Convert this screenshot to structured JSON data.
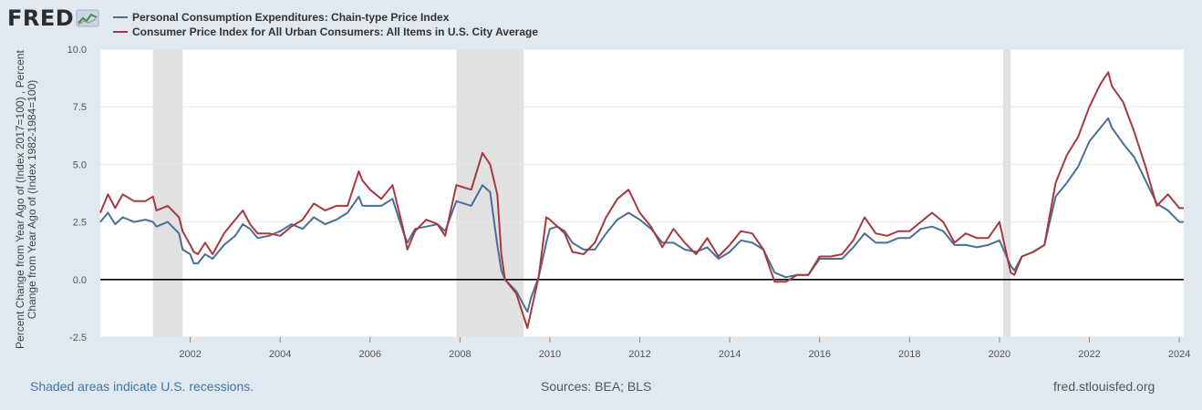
{
  "brand": {
    "name": "FRED",
    "logo_icon": "fred-chart-logo-icon"
  },
  "footer": {
    "recession_note": "Shaded areas indicate U.S. recessions.",
    "sources": "Sources: BEA; BLS",
    "site": "fred.stlouisfed.org"
  },
  "colors": {
    "pce": "#4a6f96",
    "cpi": "#a6393f",
    "recession": "#e1e1e1",
    "background": "#e1e9f0",
    "zero_line": "#000000"
  },
  "chart_data": {
    "type": "line",
    "ylabel": "Percent Change from Year Ago of (Index 2017=100) , Percent Change from Year Ago of (Index 1982-1984=100)",
    "ylim": [
      -2.5,
      10.0
    ],
    "yticks": [
      "-2.5",
      "0.0",
      "2.5",
      "5.0",
      "7.5",
      "10.0"
    ],
    "xlim": [
      2000.0,
      2024.1
    ],
    "xticks": [
      "2002",
      "2004",
      "2006",
      "2008",
      "2010",
      "2012",
      "2014",
      "2016",
      "2018",
      "2020",
      "2022",
      "2024"
    ],
    "grid": "horizontal",
    "legend_position": "top-left",
    "recessions": [
      [
        2001.17,
        2001.83
      ],
      [
        2007.92,
        2009.42
      ],
      [
        2020.08,
        2020.25
      ]
    ],
    "reference_line": 0.0,
    "series": [
      {
        "name": "Personal Consumption Expenditures: Chain-type Price Index",
        "color": "#4a6f96",
        "points": [
          [
            2000.0,
            2.5
          ],
          [
            2000.17,
            2.9
          ],
          [
            2000.33,
            2.4
          ],
          [
            2000.5,
            2.7
          ],
          [
            2000.75,
            2.5
          ],
          [
            2001.0,
            2.6
          ],
          [
            2001.17,
            2.5
          ],
          [
            2001.25,
            2.3
          ],
          [
            2001.5,
            2.5
          ],
          [
            2001.75,
            2.0
          ],
          [
            2001.83,
            1.3
          ],
          [
            2002.0,
            1.1
          ],
          [
            2002.08,
            0.7
          ],
          [
            2002.17,
            0.7
          ],
          [
            2002.33,
            1.1
          ],
          [
            2002.5,
            0.9
          ],
          [
            2002.75,
            1.5
          ],
          [
            2003.0,
            1.9
          ],
          [
            2003.17,
            2.4
          ],
          [
            2003.33,
            2.2
          ],
          [
            2003.5,
            1.8
          ],
          [
            2003.75,
            1.9
          ],
          [
            2004.0,
            2.1
          ],
          [
            2004.25,
            2.4
          ],
          [
            2004.5,
            2.2
          ],
          [
            2004.75,
            2.7
          ],
          [
            2005.0,
            2.4
          ],
          [
            2005.25,
            2.6
          ],
          [
            2005.5,
            2.9
          ],
          [
            2005.75,
            3.6
          ],
          [
            2005.83,
            3.2
          ],
          [
            2006.0,
            3.2
          ],
          [
            2006.25,
            3.2
          ],
          [
            2006.5,
            3.5
          ],
          [
            2006.75,
            2.0
          ],
          [
            2006.83,
            1.6
          ],
          [
            2007.0,
            2.2
          ],
          [
            2007.25,
            2.3
          ],
          [
            2007.5,
            2.4
          ],
          [
            2007.67,
            2.1
          ],
          [
            2007.92,
            3.4
          ],
          [
            2008.25,
            3.2
          ],
          [
            2008.5,
            4.1
          ],
          [
            2008.67,
            3.8
          ],
          [
            2008.83,
            1.5
          ],
          [
            2008.92,
            0.4
          ],
          [
            2009.0,
            0.0
          ],
          [
            2009.25,
            -0.5
          ],
          [
            2009.5,
            -1.4
          ],
          [
            2009.58,
            -0.8
          ],
          [
            2009.75,
            0.1
          ],
          [
            2009.92,
            1.6
          ],
          [
            2010.0,
            2.2
          ],
          [
            2010.17,
            2.3
          ],
          [
            2010.33,
            2.1
          ],
          [
            2010.5,
            1.6
          ],
          [
            2010.75,
            1.3
          ],
          [
            2011.0,
            1.3
          ],
          [
            2011.25,
            2.0
          ],
          [
            2011.5,
            2.6
          ],
          [
            2011.75,
            2.9
          ],
          [
            2012.0,
            2.6
          ],
          [
            2012.25,
            2.2
          ],
          [
            2012.5,
            1.6
          ],
          [
            2012.75,
            1.6
          ],
          [
            2013.0,
            1.3
          ],
          [
            2013.25,
            1.2
          ],
          [
            2013.5,
            1.4
          ],
          [
            2013.75,
            0.9
          ],
          [
            2014.0,
            1.2
          ],
          [
            2014.25,
            1.7
          ],
          [
            2014.5,
            1.6
          ],
          [
            2014.75,
            1.3
          ],
          [
            2015.0,
            0.3
          ],
          [
            2015.25,
            0.1
          ],
          [
            2015.5,
            0.2
          ],
          [
            2015.75,
            0.2
          ],
          [
            2016.0,
            0.9
          ],
          [
            2016.25,
            0.9
          ],
          [
            2016.5,
            0.9
          ],
          [
            2016.75,
            1.4
          ],
          [
            2017.0,
            2.0
          ],
          [
            2017.25,
            1.6
          ],
          [
            2017.5,
            1.6
          ],
          [
            2017.75,
            1.8
          ],
          [
            2018.0,
            1.8
          ],
          [
            2018.25,
            2.2
          ],
          [
            2018.5,
            2.3
          ],
          [
            2018.75,
            2.1
          ],
          [
            2019.0,
            1.5
          ],
          [
            2019.25,
            1.5
          ],
          [
            2019.5,
            1.4
          ],
          [
            2019.75,
            1.5
          ],
          [
            2020.0,
            1.7
          ],
          [
            2020.25,
            0.6
          ],
          [
            2020.33,
            0.4
          ],
          [
            2020.5,
            1.0
          ],
          [
            2020.75,
            1.2
          ],
          [
            2021.0,
            1.5
          ],
          [
            2021.25,
            3.6
          ],
          [
            2021.5,
            4.2
          ],
          [
            2021.75,
            4.9
          ],
          [
            2022.0,
            6.0
          ],
          [
            2022.25,
            6.6
          ],
          [
            2022.42,
            7.0
          ],
          [
            2022.5,
            6.6
          ],
          [
            2022.75,
            5.9
          ],
          [
            2023.0,
            5.3
          ],
          [
            2023.25,
            4.3
          ],
          [
            2023.5,
            3.3
          ],
          [
            2023.75,
            3.0
          ],
          [
            2024.0,
            2.5
          ],
          [
            2024.1,
            2.5
          ]
        ]
      },
      {
        "name": "Consumer Price Index for All Urban Consumers: All Items in U.S. City Average",
        "color": "#a6393f",
        "points": [
          [
            2000.0,
            2.9
          ],
          [
            2000.17,
            3.7
          ],
          [
            2000.33,
            3.1
          ],
          [
            2000.5,
            3.7
          ],
          [
            2000.75,
            3.4
          ],
          [
            2001.0,
            3.4
          ],
          [
            2001.17,
            3.6
          ],
          [
            2001.25,
            3.0
          ],
          [
            2001.5,
            3.2
          ],
          [
            2001.75,
            2.7
          ],
          [
            2001.83,
            2.1
          ],
          [
            2002.0,
            1.5
          ],
          [
            2002.08,
            1.2
          ],
          [
            2002.17,
            1.1
          ],
          [
            2002.33,
            1.6
          ],
          [
            2002.5,
            1.1
          ],
          [
            2002.75,
            2.0
          ],
          [
            2003.0,
            2.6
          ],
          [
            2003.17,
            3.0
          ],
          [
            2003.33,
            2.4
          ],
          [
            2003.5,
            2.0
          ],
          [
            2003.75,
            2.0
          ],
          [
            2004.0,
            1.9
          ],
          [
            2004.25,
            2.3
          ],
          [
            2004.5,
            2.6
          ],
          [
            2004.75,
            3.3
          ],
          [
            2005.0,
            3.0
          ],
          [
            2005.25,
            3.2
          ],
          [
            2005.5,
            3.2
          ],
          [
            2005.75,
            4.7
          ],
          [
            2005.83,
            4.3
          ],
          [
            2006.0,
            3.9
          ],
          [
            2006.25,
            3.5
          ],
          [
            2006.5,
            4.1
          ],
          [
            2006.75,
            2.1
          ],
          [
            2006.83,
            1.3
          ],
          [
            2007.0,
            2.1
          ],
          [
            2007.25,
            2.6
          ],
          [
            2007.5,
            2.4
          ],
          [
            2007.67,
            1.9
          ],
          [
            2007.92,
            4.1
          ],
          [
            2008.25,
            3.9
          ],
          [
            2008.5,
            5.5
          ],
          [
            2008.67,
            5.0
          ],
          [
            2008.83,
            3.7
          ],
          [
            2008.92,
            1.1
          ],
          [
            2009.0,
            0.0
          ],
          [
            2009.25,
            -0.6
          ],
          [
            2009.5,
            -2.1
          ],
          [
            2009.58,
            -1.4
          ],
          [
            2009.75,
            0.1
          ],
          [
            2009.92,
            2.7
          ],
          [
            2010.0,
            2.6
          ],
          [
            2010.17,
            2.3
          ],
          [
            2010.33,
            2.0
          ],
          [
            2010.5,
            1.2
          ],
          [
            2010.75,
            1.1
          ],
          [
            2011.0,
            1.6
          ],
          [
            2011.25,
            2.7
          ],
          [
            2011.5,
            3.5
          ],
          [
            2011.75,
            3.9
          ],
          [
            2012.0,
            2.9
          ],
          [
            2012.25,
            2.3
          ],
          [
            2012.5,
            1.4
          ],
          [
            2012.75,
            2.2
          ],
          [
            2013.0,
            1.6
          ],
          [
            2013.25,
            1.1
          ],
          [
            2013.5,
            1.8
          ],
          [
            2013.75,
            1.0
          ],
          [
            2014.0,
            1.5
          ],
          [
            2014.25,
            2.1
          ],
          [
            2014.5,
            2.0
          ],
          [
            2014.75,
            1.3
          ],
          [
            2015.0,
            -0.1
          ],
          [
            2015.25,
            -0.1
          ],
          [
            2015.5,
            0.2
          ],
          [
            2015.75,
            0.2
          ],
          [
            2016.0,
            1.0
          ],
          [
            2016.25,
            1.0
          ],
          [
            2016.5,
            1.1
          ],
          [
            2016.75,
            1.7
          ],
          [
            2017.0,
            2.7
          ],
          [
            2017.25,
            2.0
          ],
          [
            2017.5,
            1.9
          ],
          [
            2017.75,
            2.1
          ],
          [
            2018.0,
            2.1
          ],
          [
            2018.25,
            2.5
          ],
          [
            2018.5,
            2.9
          ],
          [
            2018.75,
            2.5
          ],
          [
            2019.0,
            1.6
          ],
          [
            2019.25,
            2.0
          ],
          [
            2019.5,
            1.8
          ],
          [
            2019.75,
            1.8
          ],
          [
            2020.0,
            2.5
          ],
          [
            2020.25,
            0.3
          ],
          [
            2020.33,
            0.2
          ],
          [
            2020.5,
            1.0
          ],
          [
            2020.75,
            1.2
          ],
          [
            2021.0,
            1.5
          ],
          [
            2021.25,
            4.2
          ],
          [
            2021.5,
            5.4
          ],
          [
            2021.75,
            6.2
          ],
          [
            2022.0,
            7.5
          ],
          [
            2022.25,
            8.5
          ],
          [
            2022.42,
            9.0
          ],
          [
            2022.5,
            8.4
          ],
          [
            2022.75,
            7.7
          ],
          [
            2023.0,
            6.4
          ],
          [
            2023.25,
            4.9
          ],
          [
            2023.5,
            3.2
          ],
          [
            2023.75,
            3.7
          ],
          [
            2024.0,
            3.1
          ],
          [
            2024.1,
            3.1
          ]
        ]
      }
    ]
  }
}
